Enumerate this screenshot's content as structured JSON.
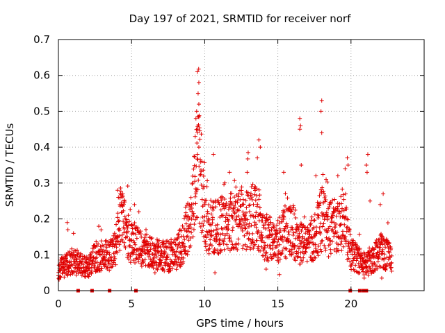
{
  "chart_data": {
    "type": "scatter",
    "title": "Day 197 of 2021, SRMTID for receiver norf",
    "xlabel": "GPS time / hours",
    "ylabel": "SRMTID / TECUs",
    "xlim": [
      0,
      25
    ],
    "ylim": [
      0,
      0.7
    ],
    "xticks": [
      0,
      5,
      10,
      15,
      20
    ],
    "yticks": [
      0,
      0.1,
      0.2,
      0.3,
      0.4,
      0.5,
      0.6,
      0.7
    ],
    "grid": true,
    "marker": "plus",
    "color": "#e00000",
    "zero_markers_x": [
      1.35,
      2.3,
      3.5,
      5.3,
      19.95,
      20.6,
      20.85,
      21.05
    ],
    "baseline": [
      [
        0.0,
        0.055
      ],
      [
        0.5,
        0.07
      ],
      [
        1.0,
        0.085
      ],
      [
        1.5,
        0.07
      ],
      [
        2.0,
        0.065
      ],
      [
        2.5,
        0.095
      ],
      [
        3.0,
        0.1
      ],
      [
        3.5,
        0.095
      ],
      [
        3.9,
        0.12
      ],
      [
        4.2,
        0.2
      ],
      [
        4.6,
        0.17
      ],
      [
        5.0,
        0.13
      ],
      [
        5.5,
        0.12
      ],
      [
        6.0,
        0.11
      ],
      [
        6.5,
        0.1
      ],
      [
        7.0,
        0.1
      ],
      [
        7.5,
        0.095
      ],
      [
        8.0,
        0.1
      ],
      [
        8.5,
        0.13
      ],
      [
        9.0,
        0.2
      ],
      [
        9.3,
        0.28
      ],
      [
        9.6,
        0.35
      ],
      [
        10.0,
        0.2
      ],
      [
        10.5,
        0.17
      ],
      [
        11.0,
        0.18
      ],
      [
        11.5,
        0.19
      ],
      [
        12.0,
        0.2
      ],
      [
        12.5,
        0.2
      ],
      [
        13.0,
        0.2
      ],
      [
        13.5,
        0.22
      ],
      [
        14.0,
        0.16
      ],
      [
        14.5,
        0.14
      ],
      [
        15.0,
        0.14
      ],
      [
        15.5,
        0.16
      ],
      [
        16.0,
        0.17
      ],
      [
        16.5,
        0.13
      ],
      [
        17.0,
        0.13
      ],
      [
        17.5,
        0.15
      ],
      [
        18.0,
        0.2
      ],
      [
        18.5,
        0.17
      ],
      [
        19.0,
        0.18
      ],
      [
        19.5,
        0.2
      ],
      [
        20.0,
        0.1
      ],
      [
        20.5,
        0.09
      ],
      [
        21.0,
        0.07
      ],
      [
        21.5,
        0.09
      ],
      [
        22.0,
        0.12
      ],
      [
        22.5,
        0.1
      ],
      [
        22.8,
        0.09
      ]
    ],
    "highlights": [
      [
        9.5,
        0.61
      ],
      [
        9.6,
        0.58
      ],
      [
        9.55,
        0.55
      ],
      [
        9.6,
        0.52
      ],
      [
        9.45,
        0.5
      ],
      [
        9.4,
        0.48
      ],
      [
        9.5,
        0.45
      ],
      [
        9.35,
        0.43
      ],
      [
        9.6,
        0.4
      ],
      [
        9.5,
        0.38
      ],
      [
        18.0,
        0.53
      ],
      [
        17.95,
        0.5
      ],
      [
        18.0,
        0.44
      ],
      [
        16.5,
        0.48
      ],
      [
        16.55,
        0.46
      ],
      [
        16.5,
        0.45
      ],
      [
        13.7,
        0.42
      ],
      [
        13.8,
        0.4
      ],
      [
        13.6,
        0.37
      ],
      [
        21.15,
        0.38
      ],
      [
        21.05,
        0.35
      ],
      [
        21.1,
        0.33
      ],
      [
        19.75,
        0.37
      ],
      [
        19.8,
        0.35
      ],
      [
        19.6,
        0.34
      ],
      [
        4.05,
        0.28
      ],
      [
        4.1,
        0.26
      ],
      [
        4.4,
        0.27
      ],
      [
        4.5,
        0.25
      ],
      [
        4.2,
        0.24
      ],
      [
        0.6,
        0.19
      ],
      [
        0.65,
        0.17
      ],
      [
        5.5,
        0.22
      ],
      [
        5.2,
        0.24
      ],
      [
        10.6,
        0.38
      ],
      [
        11.7,
        0.33
      ],
      [
        12.9,
        0.33
      ],
      [
        15.4,
        0.33
      ],
      [
        16.6,
        0.35
      ],
      [
        17.6,
        0.32
      ],
      [
        18.3,
        0.31
      ],
      [
        19.1,
        0.32
      ],
      [
        21.3,
        0.25
      ],
      [
        22.2,
        0.27
      ],
      [
        22.0,
        0.24
      ],
      [
        0.1,
        0.04
      ],
      [
        1.8,
        0.04
      ],
      [
        6.6,
        0.05
      ],
      [
        10.7,
        0.05
      ],
      [
        14.2,
        0.06
      ],
      [
        15.1,
        0.045
      ],
      [
        20.9,
        0.035
      ],
      [
        22.1,
        0.035
      ]
    ]
  }
}
